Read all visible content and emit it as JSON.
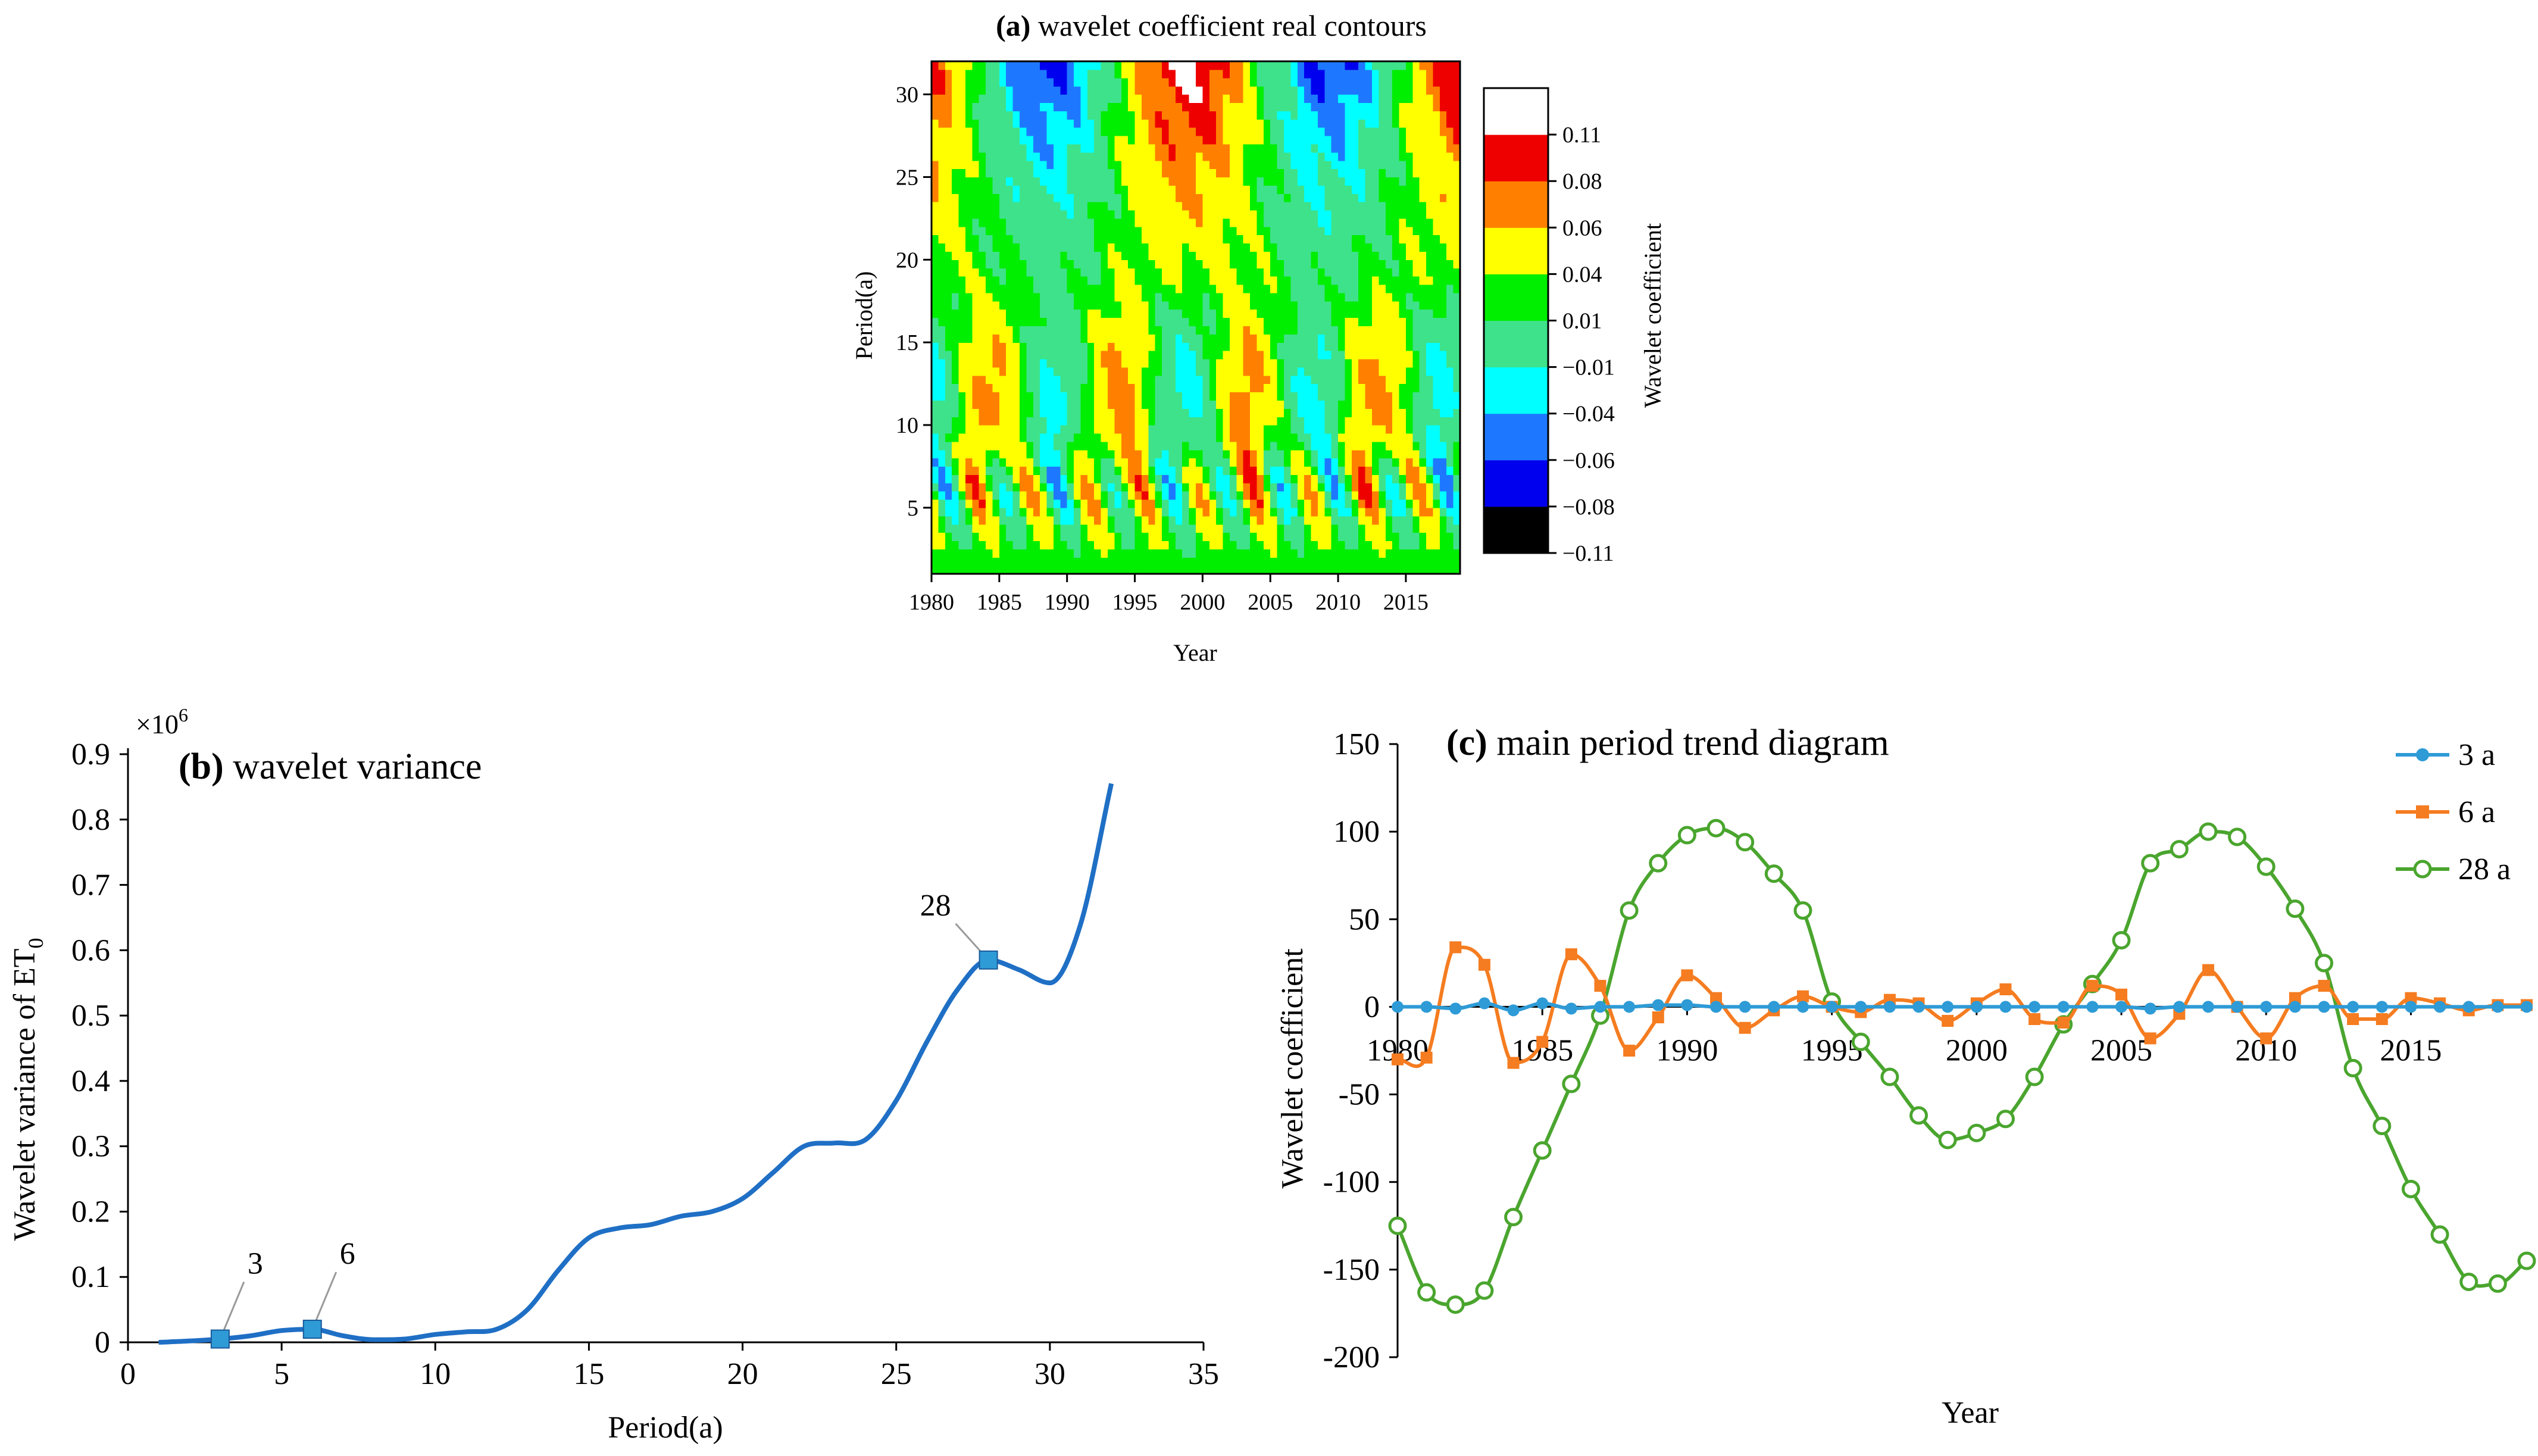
{
  "figure": {
    "panel_a": {
      "letter": "(a)",
      "title_rest": " wavelet coefficient real contours"
    },
    "panel_b": {
      "letter": "(b)",
      "title_rest": " wavelet variance",
      "multiplier": "×10",
      "multiplier_exp": "6"
    },
    "panel_c": {
      "letter": "(c)",
      "title_rest": " main period trend diagram"
    }
  },
  "colors": {
    "variance_line": "#1f6fc5",
    "variance_marker": "#2e9bd6",
    "s3": "#2e9bd6",
    "s6": "#f57c20",
    "s28": "#4aa52e",
    "contour_bins": [
      "#000000",
      "#0000ee",
      "#1e78ff",
      "#00ffff",
      "#3ee28a",
      "#00ee00",
      "#ffff00",
      "#ff8000",
      "#ee0000",
      "#ffffff"
    ]
  },
  "chart_data": [
    {
      "type": "heatmap",
      "title": "(a) wavelet coefficient real contours",
      "xlabel": "Year",
      "ylabel": "Period(a)",
      "xlim": [
        1980,
        2019
      ],
      "ylim": [
        1,
        32
      ],
      "xticks": [
        "1980",
        "1985",
        "1990",
        "1995",
        "2000",
        "2005",
        "2010",
        "2015"
      ],
      "yticks": [
        "5",
        "10",
        "15",
        "20",
        "25",
        "30"
      ],
      "colorbar_label": "Wavelet coefficient",
      "colorbar_ticks": [
        "0.11",
        "0.08",
        "0.06",
        "0.04",
        "0.01",
        "−0.01",
        "−0.04",
        "−0.06",
        "−0.08",
        "−0.11"
      ],
      "levels": [
        -0.11,
        -0.08,
        -0.06,
        -0.04,
        -0.01,
        0.01,
        0.04,
        0.06,
        0.08,
        0.11
      ],
      "value_range": [
        -0.13,
        0.13
      ]
    },
    {
      "type": "line",
      "title": "(b) wavelet variance",
      "xlabel": "Period(a)",
      "ylabel": "Wavelet variance of  ET",
      "ylabel_sub": "0",
      "xlim": [
        0,
        35
      ],
      "ylim": [
        0,
        0.9
      ],
      "xticks": [
        "0",
        "5",
        "10",
        "15",
        "20",
        "25",
        "30",
        "35"
      ],
      "yticks": [
        "0",
        "0.1",
        "0.2",
        "0.3",
        "0.4",
        "0.5",
        "0.6",
        "0.7",
        "0.8",
        "0.9"
      ],
      "x": [
        1,
        2,
        3,
        4,
        5,
        6,
        7,
        8,
        9,
        10,
        11,
        12,
        13,
        14,
        15,
        16,
        17,
        18,
        19,
        20,
        21,
        22,
        23,
        24,
        25,
        26,
        27,
        28,
        29,
        30,
        31,
        32
      ],
      "values": [
        0.0,
        0.002,
        0.005,
        0.01,
        0.018,
        0.02,
        0.01,
        0.004,
        0.005,
        0.012,
        0.016,
        0.02,
        0.05,
        0.11,
        0.16,
        0.175,
        0.18,
        0.193,
        0.2,
        0.22,
        0.26,
        0.3,
        0.305,
        0.31,
        0.37,
        0.46,
        0.54,
        0.585,
        0.57,
        0.55,
        0.64,
        0.855
      ],
      "annotations": [
        {
          "label": "3",
          "x": 3,
          "y": 0.005
        },
        {
          "label": "6",
          "x": 6,
          "y": 0.02
        },
        {
          "label": "28",
          "x": 28,
          "y": 0.585
        }
      ]
    },
    {
      "type": "line",
      "title": "(c) main period trend diagram",
      "xlabel": "Year",
      "ylabel": "Wavelet coefficient",
      "xlim": [
        1980,
        2019
      ],
      "ylim": [
        -200,
        150
      ],
      "xticks": [
        "1980",
        "1985",
        "1990",
        "1995",
        "2000",
        "2005",
        "2010",
        "2015"
      ],
      "yticks": [
        "150",
        "100",
        "50",
        "0",
        "-50",
        "-100",
        "-150",
        "-200"
      ],
      "x": [
        1980,
        1981,
        1982,
        1983,
        1984,
        1985,
        1986,
        1987,
        1988,
        1989,
        1990,
        1991,
        1992,
        1993,
        1994,
        1995,
        1996,
        1997,
        1998,
        1999,
        2000,
        2001,
        2002,
        2003,
        2004,
        2005,
        2006,
        2007,
        2008,
        2009,
        2010,
        2011,
        2012,
        2013,
        2014,
        2015,
        2016,
        2017,
        2018,
        2019
      ],
      "series": [
        {
          "name": "3 a",
          "marker": "circle-filled",
          "values": [
            0,
            0,
            -1,
            2,
            -2,
            2,
            -1,
            0,
            0,
            1,
            1,
            0,
            0,
            0,
            0,
            0,
            0,
            0,
            0,
            0,
            0,
            0,
            0,
            0,
            0,
            0,
            -1,
            0,
            0,
            0,
            0,
            0,
            0,
            0,
            0,
            0,
            0,
            0,
            0,
            0
          ]
        },
        {
          "name": "6 a",
          "marker": "square-filled",
          "values": [
            -30,
            -29,
            34,
            24,
            -32,
            -20,
            30,
            12,
            -25,
            -6,
            18,
            5,
            -12,
            -2,
            6,
            0,
            -3,
            4,
            2,
            -8,
            2,
            10,
            -7,
            -9,
            12,
            7,
            -18,
            -4,
            21,
            0,
            -18,
            5,
            12,
            -7,
            -7,
            5,
            2,
            -2,
            1,
            1
          ]
        },
        {
          "name": "28 a",
          "marker": "circle-open",
          "values": [
            -125,
            -163,
            -170,
            -162,
            -120,
            -82,
            -44,
            -5,
            55,
            82,
            98,
            102,
            94,
            76,
            55,
            3,
            -20,
            -40,
            -62,
            -76,
            -72,
            -64,
            -40,
            -10,
            13,
            38,
            82,
            90,
            100,
            97,
            80,
            56,
            25,
            -35,
            -68,
            -104,
            -130,
            -157,
            -158,
            -145
          ]
        }
      ]
    }
  ]
}
